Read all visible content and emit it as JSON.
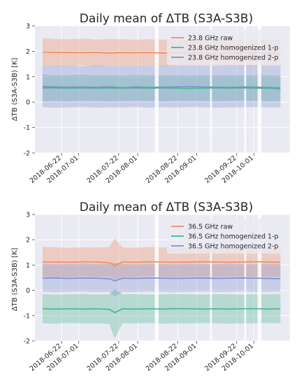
{
  "colors": {
    "background": "#eaeaf2",
    "grid": "#ffffff",
    "raw": "#f08c5c",
    "homog1": "#46b48c",
    "homog2": "#7f8fcf"
  },
  "chart_data": [
    {
      "type": "line",
      "title": "Daily mean of ΔTB (S3A-S3B)",
      "xlabel": "",
      "ylabel": "ΔTB (S3A-S3B) [K]",
      "ylim": [
        -2,
        3
      ],
      "yticks": [
        -2,
        -1,
        0,
        1,
        2,
        3
      ],
      "xlim": [
        "2018-06-08",
        "2018-10-20"
      ],
      "xticks": [
        "2018-06-22",
        "2018-07-01",
        "2018-07-22",
        "2018-08-01",
        "2018-08-22",
        "2018-09-01",
        "2018-09-22",
        "2018-10-01"
      ],
      "grid": true,
      "legend": "top-right",
      "gaps": [
        [
          "2018-08-10",
          "2018-08-12"
        ],
        [
          "2018-09-08",
          "2018-09-09"
        ],
        [
          "2018-09-26",
          "2018-09-27"
        ],
        [
          "2018-10-03",
          "2018-10-05"
        ]
      ],
      "x": [
        "2018-06-12",
        "2018-06-19",
        "2018-06-26",
        "2018-07-03",
        "2018-07-10",
        "2018-07-17",
        "2018-07-24",
        "2018-07-31",
        "2018-08-07",
        "2018-08-14",
        "2018-08-21",
        "2018-08-28",
        "2018-09-04",
        "2018-09-11",
        "2018-09-18",
        "2018-09-25",
        "2018-10-02",
        "2018-10-09",
        "2018-10-15"
      ],
      "series": [
        {
          "name": "23.8 GHz raw",
          "color": "raw",
          "values": [
            1.97,
            1.96,
            1.95,
            1.94,
            1.96,
            1.93,
            1.95,
            1.94,
            1.95,
            1.93,
            1.94,
            1.95,
            1.94,
            1.93,
            1.94,
            1.93,
            1.94,
            1.93,
            1.92
          ],
          "band_lower": [
            1.45,
            1.42,
            1.43,
            1.45,
            1.42,
            1.44,
            1.43,
            1.45,
            1.44,
            1.43,
            1.42,
            1.45,
            1.44,
            1.43,
            1.44,
            1.42,
            1.43,
            1.44,
            1.45
          ],
          "band_upper": [
            2.52,
            2.48,
            2.47,
            2.5,
            2.46,
            2.48,
            2.47,
            2.45,
            2.47,
            2.46,
            2.47,
            2.45,
            2.48,
            2.47,
            2.46,
            2.45,
            2.47,
            2.46,
            2.48
          ]
        },
        {
          "name": "23.8 GHz homogenized 1-p",
          "color": "homog1",
          "values": [
            0.56,
            0.56,
            0.55,
            0.56,
            0.55,
            0.56,
            0.55,
            0.56,
            0.55,
            0.56,
            0.55,
            0.54,
            0.55,
            0.56,
            0.55,
            0.56,
            0.55,
            0.55,
            0.52
          ],
          "band_lower": [
            0.05,
            0.05,
            0.04,
            0.06,
            0.05,
            0.04,
            0.05,
            0.06,
            0.05,
            0.04,
            0.05,
            0.06,
            0.05,
            0.04,
            0.05,
            0.06,
            0.05,
            0.04,
            0.05
          ],
          "band_upper": [
            1.08,
            1.05,
            1.06,
            1.07,
            1.05,
            1.06,
            1.04,
            1.07,
            1.05,
            1.06,
            1.05,
            1.04,
            1.06,
            1.05,
            1.06,
            1.05,
            1.06,
            1.05,
            1.04
          ]
        },
        {
          "name": "23.8 GHz homogenized 2-p",
          "color": "homog2",
          "values": [
            0.62,
            0.6,
            0.59,
            0.6,
            0.58,
            0.61,
            0.57,
            0.6,
            0.58,
            0.59,
            0.6,
            0.61,
            0.6,
            0.59,
            0.58,
            0.6,
            0.59,
            0.58,
            0.57
          ],
          "band_lower": [
            -0.2,
            -0.22,
            -0.21,
            -0.19,
            -0.22,
            -0.2,
            -0.21,
            -0.19,
            -0.22,
            -0.2,
            -0.21,
            -0.19,
            -0.2,
            -0.22,
            -0.21,
            -0.2,
            -0.19,
            -0.21,
            -0.2
          ],
          "band_upper": [
            1.45,
            1.43,
            1.44,
            1.42,
            1.45,
            1.43,
            1.42,
            1.44,
            1.43,
            1.45,
            1.42,
            1.44,
            1.43,
            1.42,
            1.44,
            1.43,
            1.45,
            1.42,
            1.43
          ]
        }
      ]
    },
    {
      "type": "line",
      "title": "Daily mean of ΔTB (S3A-S3B)",
      "xlabel": "",
      "ylabel": "ΔTB (S3A-S3B) [K]",
      "ylim": [
        -2,
        3
      ],
      "yticks": [
        -2,
        -1,
        0,
        1,
        2,
        3
      ],
      "xlim": [
        "2018-06-08",
        "2018-10-20"
      ],
      "xticks": [
        "2018-06-22",
        "2018-07-01",
        "2018-07-22",
        "2018-08-01",
        "2018-08-22",
        "2018-09-01",
        "2018-09-22",
        "2018-10-01"
      ],
      "grid": true,
      "legend": "top-right",
      "gaps": [
        [
          "2018-08-10",
          "2018-08-12"
        ],
        [
          "2018-09-08",
          "2018-09-09"
        ],
        [
          "2018-09-26",
          "2018-09-27"
        ],
        [
          "2018-10-03",
          "2018-10-05"
        ]
      ],
      "x": [
        "2018-06-12",
        "2018-06-19",
        "2018-06-26",
        "2018-07-03",
        "2018-07-10",
        "2018-07-17",
        "2018-07-20",
        "2018-07-24",
        "2018-07-31",
        "2018-08-07",
        "2018-08-14",
        "2018-08-21",
        "2018-08-28",
        "2018-09-04",
        "2018-09-11",
        "2018-09-18",
        "2018-09-25",
        "2018-10-02",
        "2018-10-09",
        "2018-10-15"
      ],
      "series": [
        {
          "name": "36.5 GHz raw",
          "color": "raw",
          "values": [
            1.12,
            1.12,
            1.11,
            1.13,
            1.12,
            1.1,
            0.97,
            1.12,
            1.11,
            1.13,
            1.12,
            1.11,
            1.12,
            1.13,
            1.12,
            1.11,
            1.12,
            1.13,
            1.12,
            1.11
          ],
          "band_lower": [
            0.55,
            0.52,
            0.54,
            0.56,
            0.53,
            0.55,
            0.4,
            0.54,
            0.53,
            0.56,
            0.54,
            0.53,
            0.55,
            0.54,
            0.53,
            0.55,
            0.54,
            0.53,
            0.55,
            0.54
          ],
          "band_upper": [
            1.72,
            1.7,
            1.68,
            1.7,
            1.69,
            1.71,
            2.05,
            1.7,
            1.68,
            1.71,
            1.69,
            1.7,
            1.68,
            1.71,
            1.69,
            1.7,
            1.68,
            1.7,
            1.69,
            1.7
          ]
        },
        {
          "name": "36.5 GHz homogenized 1-p",
          "color": "homog1",
          "values": [
            -0.73,
            -0.74,
            -0.73,
            -0.74,
            -0.73,
            -0.75,
            -0.88,
            -0.73,
            -0.74,
            -0.73,
            -0.74,
            -0.72,
            -0.73,
            -0.74,
            -0.73,
            -0.74,
            -0.73,
            -0.73,
            -0.74,
            -0.73
          ],
          "band_lower": [
            -1.3,
            -1.32,
            -1.29,
            -1.31,
            -1.3,
            -1.33,
            -1.9,
            -1.3,
            -1.31,
            -1.29,
            -1.32,
            -1.3,
            -1.31,
            -1.29,
            -1.3,
            -1.32,
            -1.3,
            -1.31,
            -1.29,
            -1.3
          ],
          "band_upper": [
            -0.15,
            -0.17,
            -0.16,
            -0.15,
            -0.17,
            -0.16,
            0.05,
            -0.16,
            -0.15,
            -0.17,
            -0.16,
            -0.15,
            -0.16,
            -0.17,
            -0.15,
            -0.16,
            -0.17,
            -0.15,
            -0.16,
            -0.15
          ]
        },
        {
          "name": "36.5 GHz homogenized 2-p",
          "color": "homog2",
          "values": [
            0.48,
            0.49,
            0.47,
            0.49,
            0.48,
            0.46,
            0.37,
            0.48,
            0.47,
            0.49,
            0.48,
            0.47,
            0.48,
            0.49,
            0.47,
            0.48,
            0.49,
            0.48,
            0.47,
            0.46
          ],
          "band_lower": [
            -0.05,
            -0.08,
            -0.06,
            -0.05,
            -0.07,
            -0.06,
            -0.25,
            -0.06,
            -0.07,
            -0.05,
            -0.06,
            -0.08,
            -0.06,
            -0.05,
            -0.07,
            -0.06,
            -0.05,
            -0.07,
            -0.06,
            -0.05
          ],
          "band_upper": [
            1.05,
            1.03,
            1.04,
            1.06,
            1.03,
            1.05,
            1.1,
            1.04,
            1.03,
            1.05,
            1.04,
            1.03,
            1.05,
            1.04,
            1.03,
            1.05,
            1.04,
            1.03,
            1.05,
            1.04
          ]
        }
      ]
    }
  ]
}
